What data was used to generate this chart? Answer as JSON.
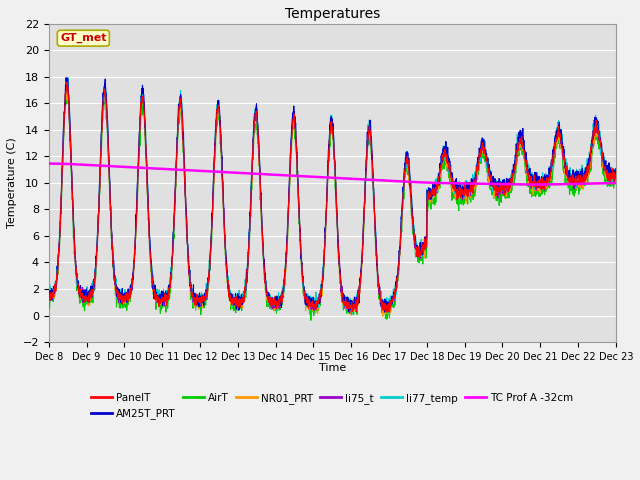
{
  "title": "Temperatures",
  "ylabel": "Temperature (C)",
  "xlabel": "Time",
  "xlim": [
    0,
    15
  ],
  "ylim": [
    -2,
    22
  ],
  "yticks": [
    -2,
    0,
    2,
    4,
    6,
    8,
    10,
    12,
    14,
    16,
    18,
    20,
    22
  ],
  "xtick_labels": [
    "Dec 8",
    "Dec 9",
    "Dec 10",
    "Dec 11",
    "Dec 12",
    "Dec 13",
    "Dec 14",
    "Dec 15",
    "Dec 16",
    "Dec 17",
    "Dec 18",
    "Dec 19",
    "Dec 20",
    "Dec 21",
    "Dec 22",
    "Dec 23"
  ],
  "annotation_text": "GT_met",
  "annotation_bg": "#ffffcc",
  "annotation_edge": "#aaaa00",
  "annotation_text_color": "#cc0000",
  "series_colors": {
    "PanelT": "#ff0000",
    "AM25T_PRT": "#0000cc",
    "AirT": "#00cc00",
    "NR01_PRT": "#ff9900",
    "li75_t": "#9900cc",
    "li77_temp": "#00cccc",
    "TC Prof A -32cm": "#ff00ff"
  },
  "fig_bg_color": "#f0f0f0",
  "plot_bg_color": "#e0e0e0",
  "grid_color": "#ffffff",
  "linewidth": 0.8
}
